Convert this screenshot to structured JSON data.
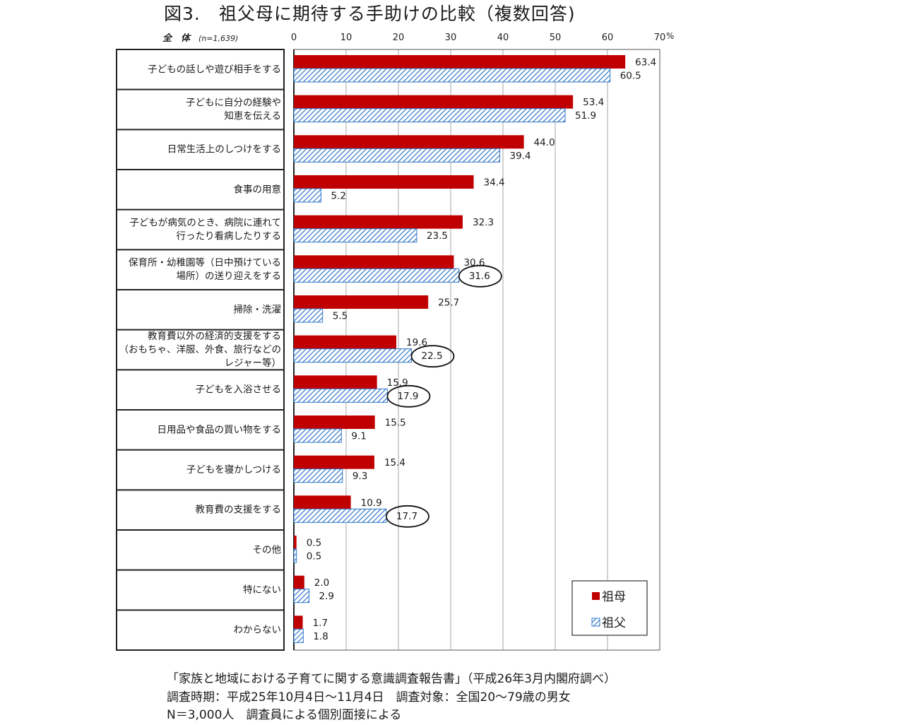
{
  "figure": {
    "title": "図3.　祖父母に期待する手助けの比較（複数回答)"
  },
  "chart_data": {
    "type": "bar",
    "orientation": "horizontal",
    "group_label": "全　体",
    "group_n": "(n=1,639)",
    "unit": "%",
    "xlim": [
      0,
      70
    ],
    "xticks": [
      0,
      10,
      20,
      30,
      40,
      50,
      60,
      70
    ],
    "xtick_labels": [
      "0",
      "10",
      "20",
      "30",
      "40",
      "50",
      "60",
      "70"
    ],
    "grid": "vertical",
    "legend_position": "bottom-right",
    "categories": [
      [
        "子どもの話しや遊び相手をする"
      ],
      [
        "子どもに自分の経験や",
        "知恵を伝える"
      ],
      [
        "日常生活上のしつけをする"
      ],
      [
        "食事の用意"
      ],
      [
        "子どもが病気のとき、病院に連れて",
        "行ったり看病したりする"
      ],
      [
        "保育所・幼稚園等（日中預けている",
        "場所）の送り迎えをする"
      ],
      [
        "掃除・洗濯"
      ],
      [
        "教育費以外の経済的支援をする",
        "（おもちゃ、洋服、外食、旅行などの",
        "レジャー等）"
      ],
      [
        "子どもを入浴させる"
      ],
      [
        "日用品や食品の買い物をする"
      ],
      [
        "子どもを寝かしつける"
      ],
      [
        "教育費の支援をする"
      ],
      [
        "その他"
      ],
      [
        "特にない"
      ],
      [
        "わからない"
      ]
    ],
    "series": [
      {
        "name": "祖母",
        "color": "#c00000",
        "pattern": "solid",
        "values": [
          63.4,
          53.4,
          44.0,
          34.4,
          32.3,
          30.6,
          25.7,
          19.6,
          15.9,
          15.5,
          15.4,
          10.9,
          0.5,
          2.0,
          1.7
        ],
        "labels": [
          "63.4",
          "53.4",
          "44.0",
          "34.4",
          "32.3",
          "30.6",
          "25.7",
          "19.6",
          "15.9",
          "15.5",
          "15.4",
          "10.9",
          "0.5",
          "2.0",
          "1.7"
        ]
      },
      {
        "name": "祖父",
        "color": "#2e75c8",
        "pattern": "hatched",
        "values": [
          60.5,
          51.9,
          39.4,
          5.2,
          23.5,
          31.6,
          5.5,
          22.5,
          17.9,
          9.1,
          9.3,
          17.7,
          0.5,
          2.9,
          1.8
        ],
        "labels": [
          "60.5",
          "51.9",
          "39.4",
          "5.2",
          "23.5",
          "31.6",
          "5.5",
          "22.5",
          "17.9",
          "9.1",
          "9.3",
          "17.7",
          "0.5",
          "2.9",
          "1.8"
        ]
      }
    ],
    "circled_values": [
      {
        "category_index": 5,
        "series": "祖父"
      },
      {
        "category_index": 7,
        "series": "祖父"
      },
      {
        "category_index": 8,
        "series": "祖父"
      },
      {
        "category_index": 11,
        "series": "祖父"
      }
    ]
  },
  "source": {
    "line1": "「家族と地域における子育てに関する意識調査報告書」（平成26年3月内閣府調べ）",
    "line2": "調査時期：平成25年10月4日～11月4日　調査対象：全国20～79歳の男女",
    "line3": "N＝3,000人　調査員による個別面接による"
  }
}
